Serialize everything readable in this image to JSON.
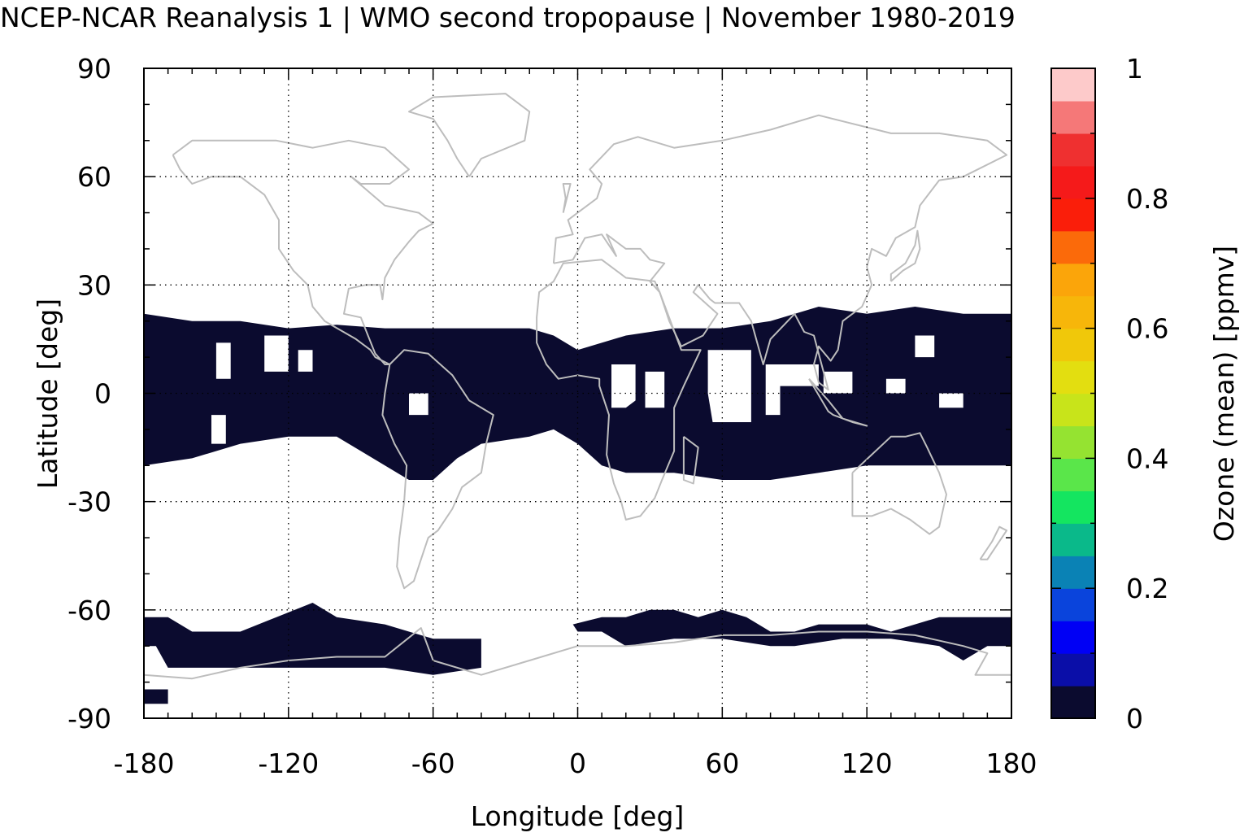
{
  "chart_data": {
    "type": "heatmap",
    "title": "NCEP-NCAR Reanalysis 1 | WMO second tropopause | November 1980-2019",
    "xlabel": "Longitude [deg]",
    "ylabel": "Latitude [deg]",
    "colorbar_label": "Ozone (mean) [ppmv]",
    "xlim": [
      -180,
      180
    ],
    "ylim": [
      -90,
      90
    ],
    "xticks": [
      "-180",
      "-120",
      "-60",
      "0",
      "60",
      "120",
      "180"
    ],
    "yticks": [
      "90",
      "60",
      "30",
      "0",
      "-30",
      "-60",
      "-90"
    ],
    "colorbar_ticks": [
      "1",
      "0.8",
      "0.6",
      "0.4",
      "0.2",
      "0"
    ],
    "colorbar_range": [
      0,
      1
    ],
    "grid": true,
    "grid_resolution_deg": 10,
    "coastline_color": "#bdbdbd",
    "background_cells_value": 0,
    "data_color_lowest_bin": "#0b0b2f",
    "colormap": [
      "#0b0b2f",
      "#0a0ea8",
      "#0000f5",
      "#0a44dc",
      "#0a82b5",
      "#0ab98a",
      "#14e560",
      "#5ae64a",
      "#95e331",
      "#c8e41a",
      "#e3de10",
      "#f0c80a",
      "#f7b60a",
      "#fba50a",
      "#fb6a0a",
      "#fa1e0a",
      "#f51a1a",
      "#ef3030",
      "#f57878",
      "#fdcaca"
    ],
    "regions": [
      {
        "name": "tropical band",
        "value": 0,
        "polygon": [
          [
            -180,
            22
          ],
          [
            -160,
            20
          ],
          [
            -140,
            20
          ],
          [
            -120,
            18
          ],
          [
            -100,
            19
          ],
          [
            -80,
            18
          ],
          [
            -60,
            18
          ],
          [
            -40,
            18
          ],
          [
            -20,
            18
          ],
          [
            -10,
            16
          ],
          [
            0,
            12
          ],
          [
            20,
            16
          ],
          [
            40,
            18
          ],
          [
            60,
            18
          ],
          [
            80,
            20
          ],
          [
            100,
            24
          ],
          [
            120,
            22
          ],
          [
            140,
            24
          ],
          [
            160,
            22
          ],
          [
            180,
            22
          ],
          [
            180,
            -20
          ],
          [
            160,
            -20
          ],
          [
            140,
            -20
          ],
          [
            120,
            -20
          ],
          [
            100,
            -22
          ],
          [
            80,
            -24
          ],
          [
            60,
            -24
          ],
          [
            40,
            -22
          ],
          [
            20,
            -22
          ],
          [
            10,
            -20
          ],
          [
            0,
            -14
          ],
          [
            -10,
            -10
          ],
          [
            -20,
            -12
          ],
          [
            -40,
            -14
          ],
          [
            -50,
            -18
          ],
          [
            -60,
            -24
          ],
          [
            -70,
            -24
          ],
          [
            -80,
            -20
          ],
          [
            -90,
            -16
          ],
          [
            -100,
            -12
          ],
          [
            -110,
            -12
          ],
          [
            -120,
            -12
          ],
          [
            -140,
            -14
          ],
          [
            -160,
            -18
          ],
          [
            -180,
            -20
          ]
        ]
      },
      {
        "name": "antarctic band west",
        "value": 0,
        "polygon": [
          [
            -180,
            -62
          ],
          [
            -170,
            -62
          ],
          [
            -160,
            -66
          ],
          [
            -140,
            -66
          ],
          [
            -125,
            -62
          ],
          [
            -110,
            -58
          ],
          [
            -100,
            -62
          ],
          [
            -80,
            -64
          ],
          [
            -70,
            -66
          ],
          [
            -60,
            -68
          ],
          [
            -40,
            -68
          ],
          [
            -40,
            -76
          ],
          [
            -60,
            -78
          ],
          [
            -80,
            -76
          ],
          [
            -100,
            -76
          ],
          [
            -120,
            -76
          ],
          [
            -140,
            -76
          ],
          [
            -160,
            -76
          ],
          [
            -170,
            -76
          ],
          [
            -175,
            -70
          ],
          [
            -180,
            -70
          ]
        ]
      },
      {
        "name": "antarctic band east",
        "value": 0,
        "polygon": [
          [
            -2,
            -64
          ],
          [
            10,
            -62
          ],
          [
            20,
            -62
          ],
          [
            30,
            -60
          ],
          [
            40,
            -60
          ],
          [
            50,
            -62
          ],
          [
            60,
            -60
          ],
          [
            70,
            -62
          ],
          [
            80,
            -66
          ],
          [
            90,
            -66
          ],
          [
            100,
            -64
          ],
          [
            110,
            -64
          ],
          [
            120,
            -64
          ],
          [
            130,
            -66
          ],
          [
            150,
            -62
          ],
          [
            170,
            -62
          ],
          [
            180,
            -62
          ],
          [
            180,
            -70
          ],
          [
            170,
            -70
          ],
          [
            160,
            -74
          ],
          [
            150,
            -70
          ],
          [
            130,
            -68
          ],
          [
            110,
            -68
          ],
          [
            90,
            -70
          ],
          [
            80,
            -70
          ],
          [
            60,
            -68
          ],
          [
            40,
            -68
          ],
          [
            20,
            -70
          ],
          [
            10,
            -66
          ],
          [
            0,
            -66
          ]
        ]
      },
      {
        "name": "antarctic patch",
        "value": 0,
        "polygon": [
          [
            -180,
            -82
          ],
          [
            -170,
            -82
          ],
          [
            -170,
            -86
          ],
          [
            -180,
            -86
          ]
        ]
      }
    ],
    "gaps": [
      {
        "polygon": [
          [
            -150,
            14
          ],
          [
            -144,
            14
          ],
          [
            -144,
            4
          ],
          [
            -150,
            4
          ]
        ]
      },
      {
        "polygon": [
          [
            -130,
            16
          ],
          [
            -120,
            16
          ],
          [
            -120,
            6
          ],
          [
            -130,
            6
          ]
        ]
      },
      {
        "polygon": [
          [
            -116,
            12
          ],
          [
            -110,
            12
          ],
          [
            -110,
            6
          ],
          [
            -116,
            6
          ]
        ]
      },
      {
        "polygon": [
          [
            -152,
            -6
          ],
          [
            -146,
            -6
          ],
          [
            -146,
            -14
          ],
          [
            -152,
            -14
          ]
        ]
      },
      {
        "polygon": [
          [
            -70,
            0
          ],
          [
            -62,
            0
          ],
          [
            -62,
            -6
          ],
          [
            -70,
            -6
          ]
        ]
      },
      {
        "polygon": [
          [
            14,
            8
          ],
          [
            24,
            8
          ],
          [
            24,
            -2
          ],
          [
            20,
            -4
          ],
          [
            14,
            -4
          ]
        ]
      },
      {
        "polygon": [
          [
            28,
            6
          ],
          [
            36,
            6
          ],
          [
            36,
            -4
          ],
          [
            28,
            -4
          ]
        ]
      },
      {
        "polygon": [
          [
            54,
            12
          ],
          [
            72,
            12
          ],
          [
            72,
            -8
          ],
          [
            56,
            -8
          ],
          [
            54,
            0
          ]
        ]
      },
      {
        "polygon": [
          [
            78,
            8
          ],
          [
            100,
            8
          ],
          [
            100,
            2
          ],
          [
            84,
            2
          ],
          [
            84,
            -6
          ],
          [
            78,
            -6
          ]
        ]
      },
      {
        "polygon": [
          [
            102,
            6
          ],
          [
            114,
            6
          ],
          [
            114,
            0
          ],
          [
            102,
            0
          ]
        ]
      },
      {
        "polygon": [
          [
            140,
            16
          ],
          [
            148,
            16
          ],
          [
            148,
            10
          ],
          [
            140,
            10
          ]
        ]
      },
      {
        "polygon": [
          [
            128,
            4
          ],
          [
            136,
            4
          ],
          [
            136,
            0
          ],
          [
            128,
            0
          ]
        ]
      },
      {
        "polygon": [
          [
            150,
            0
          ],
          [
            160,
            0
          ],
          [
            160,
            -4
          ],
          [
            150,
            -4
          ]
        ]
      }
    ]
  }
}
